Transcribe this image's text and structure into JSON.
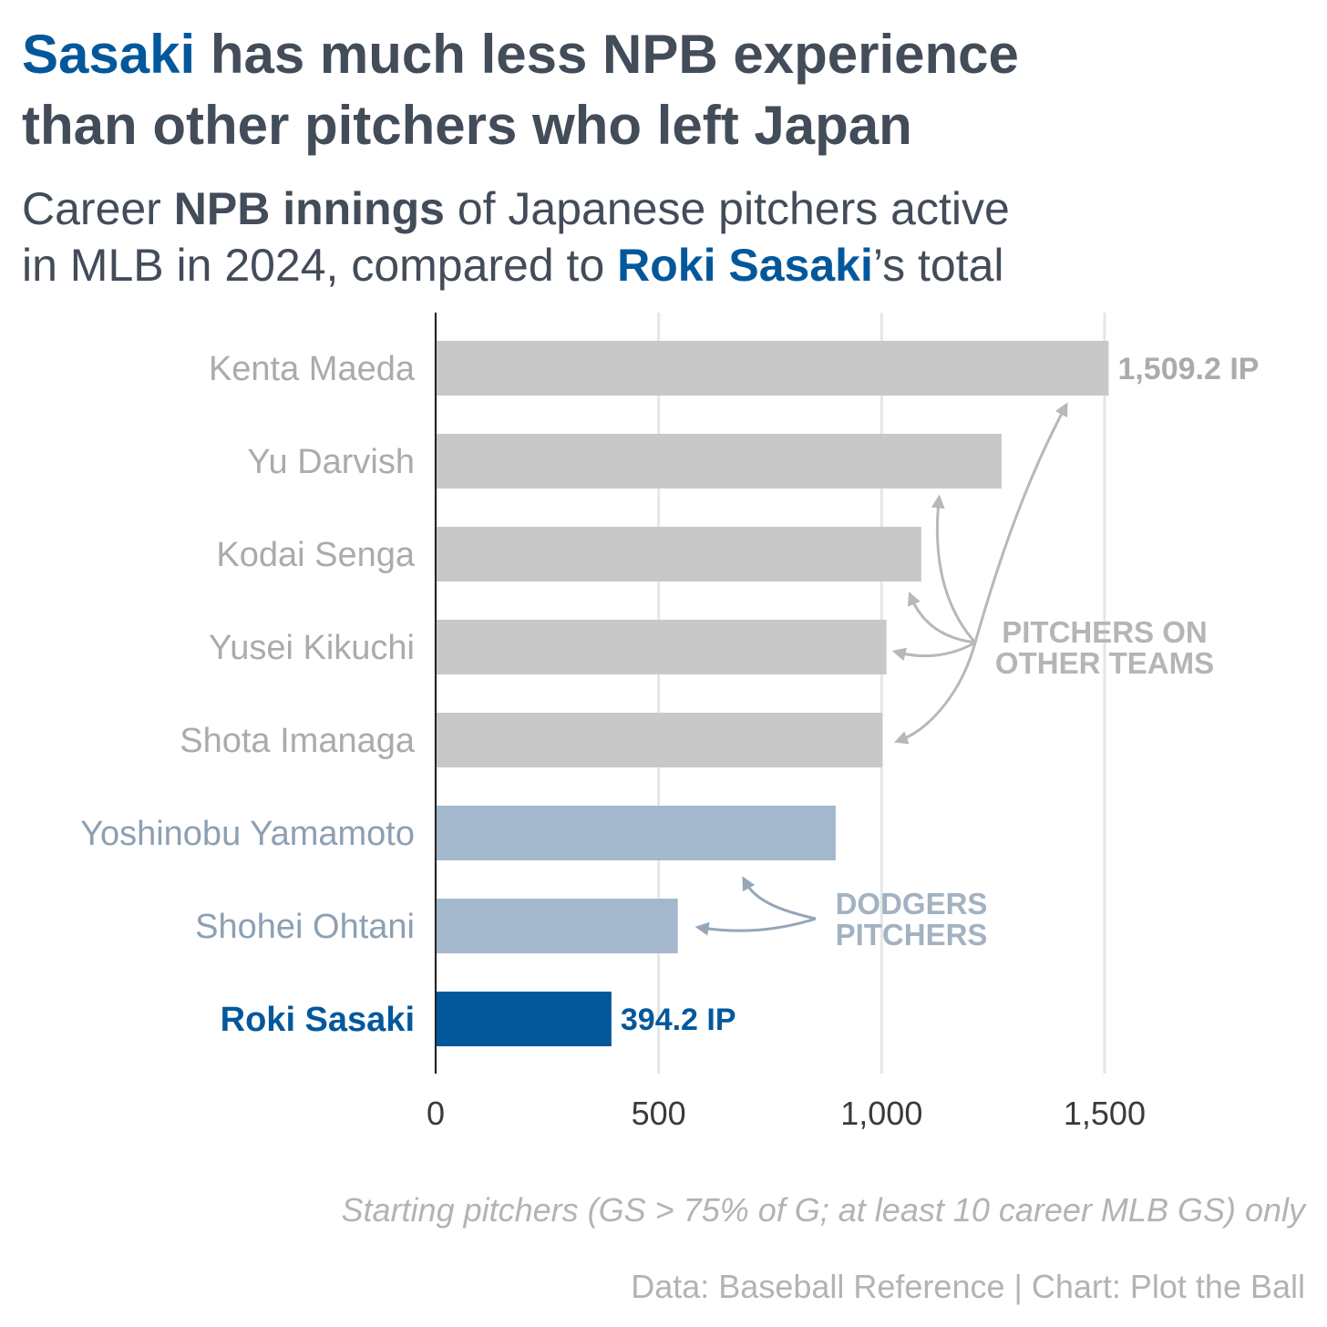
{
  "chart_data": {
    "type": "barh",
    "title_lines": [
      [
        "Sasaki",
        " has much less NPB experience"
      ],
      [
        "than other pitchers who left Japan"
      ]
    ],
    "title_colors": [
      "#03589c",
      "#434c59"
    ],
    "subtitle_lines": [
      [
        "Career ",
        "NPB innings",
        " of Japanese pitchers active"
      ],
      [
        "in MLB in 2024, compared to ",
        "Roki Sasaki",
        "’s total"
      ]
    ],
    "categories": [
      "Kenta Maeda",
      "Yu Darvish",
      "Kodai Senga",
      "Yusei Kikuchi",
      "Shota Imanaga",
      "Yoshinobu Yamamoto",
      "Shohei Ohtani",
      "Roki Sasaki"
    ],
    "values": [
      1509.2,
      1269,
      1089,
      1011,
      1002,
      897,
      543,
      394.2
    ],
    "value_labels": [
      "1,509.2 IP",
      null,
      null,
      null,
      null,
      null,
      null,
      "394.2 IP"
    ],
    "colors": [
      "#c8c8c8",
      "#c8c8c8",
      "#c8c8c8",
      "#c8c8c8",
      "#c8c8c8",
      "#a3b8cc",
      "#a3b8cc",
      "#03589c"
    ],
    "label_colors": [
      "#ababab",
      "#ababab",
      "#ababab",
      "#ababab",
      "#ababab",
      "#8ca0b3",
      "#8ca0b3",
      "#03589c"
    ],
    "xlim": [
      0,
      1800
    ],
    "xticks": [
      0,
      500,
      {
        "value": 1000,
        "label": "1,000"
      },
      {
        "value": 1500,
        "label": "1,500"
      }
    ],
    "grid": true,
    "annotations": [
      {
        "lines": [
          "PITCHERS ON",
          "OTHER TEAMS"
        ],
        "color": "#b5b5b5"
      },
      {
        "lines": [
          "DODGERS",
          "PITCHERS"
        ],
        "color": "#a3b2c1"
      }
    ],
    "footnote": "Starting pitchers (GS > 75% of G; at least 10 career MLB GS) only",
    "source": "Data: Baseball Reference | Chart: Plot the Ball"
  }
}
